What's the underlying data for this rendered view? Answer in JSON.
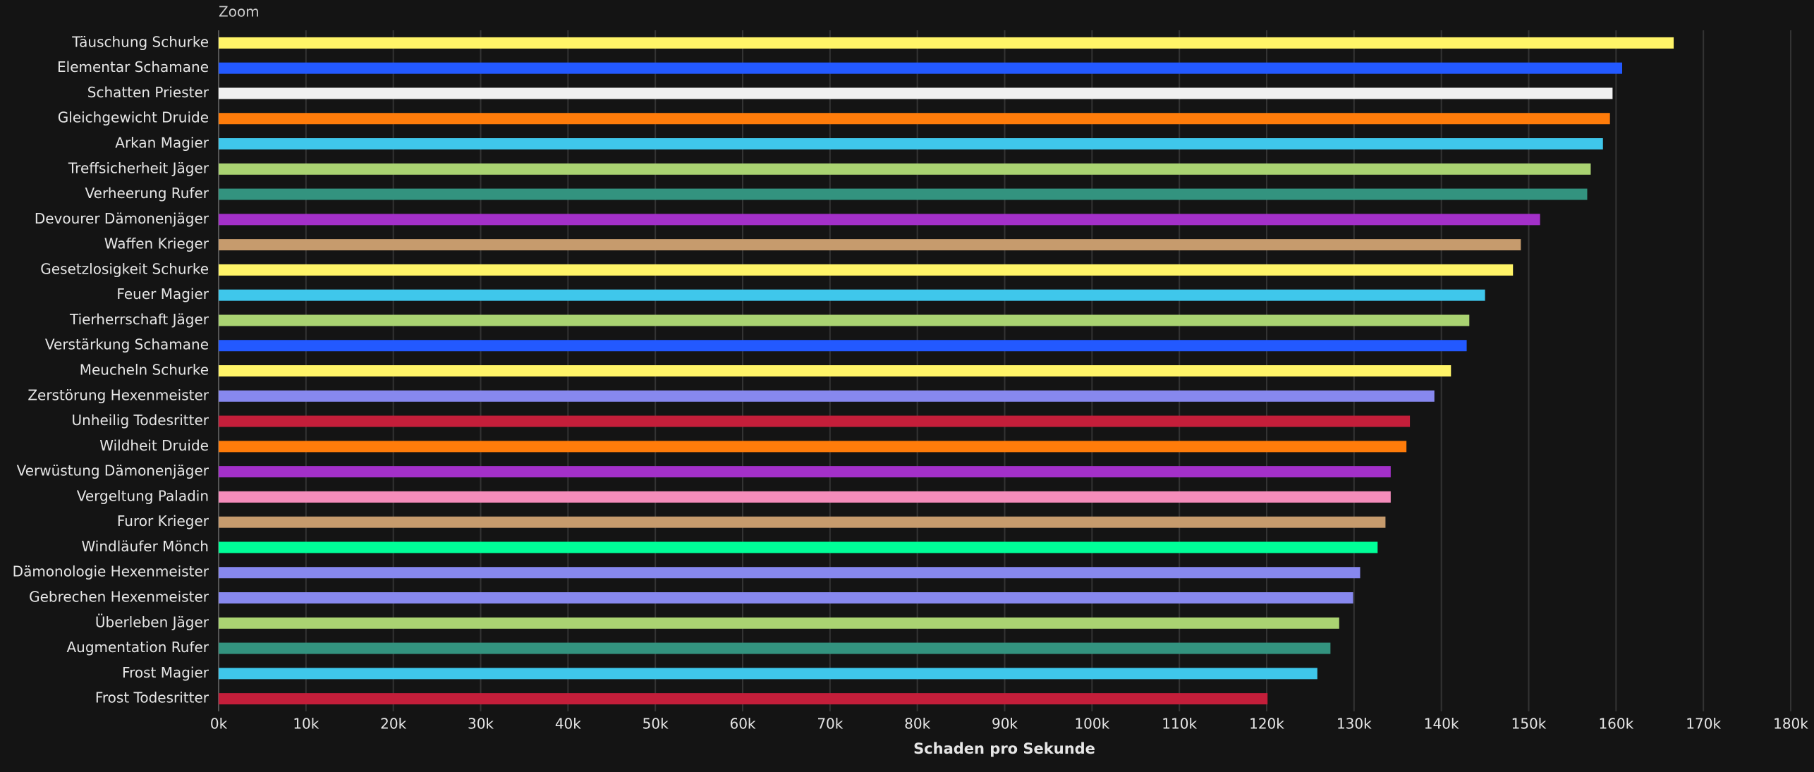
{
  "zoom_label": "Zoom",
  "chart_data": {
    "type": "barh",
    "x_label": "Schaden pro Sekunde",
    "categories": [
      "Täuschung Schurke",
      "Elementar Schamane",
      "Schatten Priester",
      "Gleichgewicht Druide",
      "Arkan Magier",
      "Treffsicherheit Jäger",
      "Verheerung Rufer",
      "Devourer Dämonenjäger",
      "Waffen Krieger",
      "Gesetzlosigkeit Schurke",
      "Feuer Magier",
      "Tierherrschaft Jäger",
      "Verstärkung Schamane",
      "Meucheln Schurke",
      "Zerstörung Hexenmeister",
      "Unheilig Todesritter",
      "Wildheit Druide",
      "Verwüstung Dämonenjäger",
      "Vergeltung Paladin",
      "Furor Krieger",
      "Windläufer Mönch",
      "Dämonologie Hexenmeister",
      "Gebrechen Hexenmeister",
      "Überleben Jäger",
      "Augmentation Rufer",
      "Frost Magier",
      "Frost Todesritter"
    ],
    "values": [
      166600,
      160700,
      159600,
      159300,
      158500,
      157100,
      156700,
      151300,
      149100,
      148200,
      145000,
      143200,
      142900,
      141100,
      139200,
      136400,
      136000,
      134200,
      134200,
      133600,
      132700,
      130700,
      129900,
      128300,
      127300,
      125800,
      120100
    ],
    "colors": [
      "#fff468",
      "#2359ff",
      "#f0f0f0",
      "#ff7c0a",
      "#3fc7eb",
      "#aad372",
      "#33937f",
      "#a330c9",
      "#c69b6d",
      "#fff468",
      "#3fc7eb",
      "#aad372",
      "#2359ff",
      "#fff468",
      "#8788ee",
      "#c41e3a",
      "#ff7c0a",
      "#a330c9",
      "#f48cba",
      "#c69b6d",
      "#00ff98",
      "#8788ee",
      "#8788ee",
      "#aad372",
      "#33937f",
      "#3fc7eb",
      "#c41e3a"
    ],
    "xlim": [
      0,
      180000
    ],
    "xticks": [
      {
        "value": 0,
        "label": "0k"
      },
      {
        "value": 10000,
        "label": "10k"
      },
      {
        "value": 20000,
        "label": "20k"
      },
      {
        "value": 30000,
        "label": "30k"
      },
      {
        "value": 40000,
        "label": "40k"
      },
      {
        "value": 50000,
        "label": "50k"
      },
      {
        "value": 60000,
        "label": "60k"
      },
      {
        "value": 70000,
        "label": "70k"
      },
      {
        "value": 80000,
        "label": "80k"
      },
      {
        "value": 90000,
        "label": "90k"
      },
      {
        "value": 100000,
        "label": "100k"
      },
      {
        "value": 110000,
        "label": "110k"
      },
      {
        "value": 120000,
        "label": "120k"
      },
      {
        "value": 130000,
        "label": "130k"
      },
      {
        "value": 140000,
        "label": "140k"
      },
      {
        "value": 150000,
        "label": "150k"
      },
      {
        "value": 160000,
        "label": "160k"
      },
      {
        "value": 170000,
        "label": "170k"
      },
      {
        "value": 180000,
        "label": "180k"
      }
    ],
    "grid": true
  }
}
